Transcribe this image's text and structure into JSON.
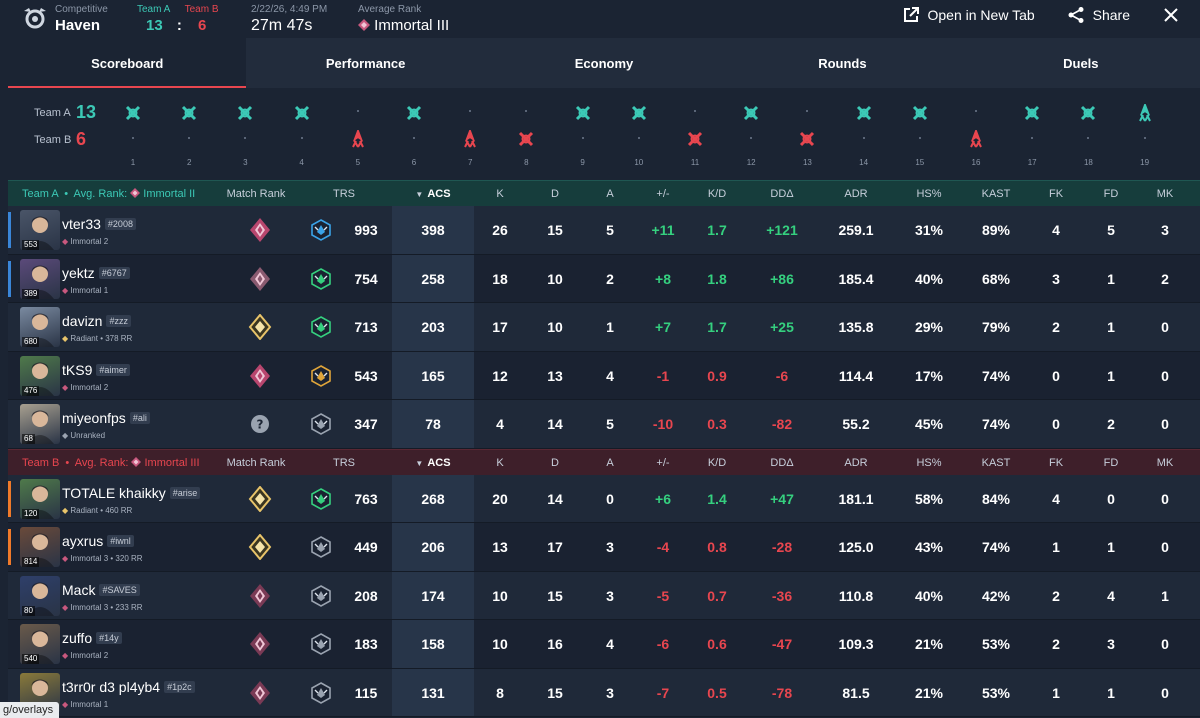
{
  "header": {
    "mode": "Competitive",
    "map": "Haven",
    "team_a_label": "Team A",
    "team_b_label": "Team B",
    "team_a_score": "13",
    "team_b_score": "6",
    "score_sep": ":",
    "date": "2/22/26, 4:49 PM",
    "duration": "27m 47s",
    "avg_rank_label": "Average Rank",
    "avg_rank": "Immortal III",
    "open_new_tab": "Open in New Tab",
    "share": "Share"
  },
  "tabs": [
    "Scoreboard",
    "Performance",
    "Economy",
    "Rounds",
    "Duels"
  ],
  "timeline": {
    "team_a_label": "Team A",
    "team_b_label": "Team B",
    "team_a_score": "13",
    "team_b_score": "6",
    "rounds": [
      {
        "n": "1",
        "w": "A",
        "kind": "elim"
      },
      {
        "n": "2",
        "w": "A",
        "kind": "elim"
      },
      {
        "n": "3",
        "w": "A",
        "kind": "elim"
      },
      {
        "n": "4",
        "w": "A",
        "kind": "elim"
      },
      {
        "n": "5",
        "w": "B",
        "kind": "spike"
      },
      {
        "n": "6",
        "w": "A",
        "kind": "elim"
      },
      {
        "n": "7",
        "w": "B",
        "kind": "spike"
      },
      {
        "n": "8",
        "w": "B",
        "kind": "elim"
      },
      {
        "n": "9",
        "w": "A",
        "kind": "elim"
      },
      {
        "n": "10",
        "w": "A",
        "kind": "elim"
      },
      {
        "n": "11",
        "w": "B",
        "kind": "elim"
      },
      {
        "n": "12",
        "w": "A",
        "kind": "elim"
      },
      {
        "n": "13",
        "w": "B",
        "kind": "elim"
      },
      {
        "n": "14",
        "w": "A",
        "kind": "elim"
      },
      {
        "n": "15",
        "w": "A",
        "kind": "elim"
      },
      {
        "n": "16",
        "w": "B",
        "kind": "spike"
      },
      {
        "n": "17",
        "w": "A",
        "kind": "elim"
      },
      {
        "n": "18",
        "w": "A",
        "kind": "elim"
      },
      {
        "n": "19",
        "w": "A",
        "kind": "spike"
      }
    ]
  },
  "columns": {
    "match_rank": "Match Rank",
    "trs": "TRS",
    "acs": "ACS",
    "k": "K",
    "d": "D",
    "a": "A",
    "pm": "+/-",
    "kd": "K/D",
    "dd": "DDΔ",
    "adr": "ADR",
    "hs": "HS%",
    "kast": "KAST",
    "fk": "FK",
    "fd": "FD",
    "mk": "MK",
    "sort_arrow": "▼"
  },
  "team_a": {
    "name": "Team A",
    "avg_label": "Avg. Rank:",
    "avg_rank": "Immortal II",
    "players": [
      {
        "name": "vter33",
        "tag": "#2008",
        "rank": "Immortal 2",
        "rr": "553",
        "match_rank": "immortal",
        "trs_tier": "blue",
        "trs": "993",
        "acs": "398",
        "k": "26",
        "d": "15",
        "a": "5",
        "pm": "+11",
        "kd": "1.7",
        "dd": "+121",
        "adr": "259.1",
        "hs": "31%",
        "kast": "89%",
        "fk": "4",
        "fd": "5",
        "mk": "3",
        "side": "#3a86d8",
        "av": "#4a5568"
      },
      {
        "name": "yektz",
        "tag": "#6767",
        "rank": "Immortal 1",
        "rr": "389",
        "match_rank": "immortal-grey",
        "trs_tier": "green",
        "trs": "754",
        "acs": "258",
        "k": "18",
        "d": "10",
        "a": "2",
        "pm": "+8",
        "kd": "1.8",
        "dd": "+86",
        "adr": "185.4",
        "hs": "40%",
        "kast": "68%",
        "fk": "3",
        "fd": "1",
        "mk": "2",
        "side": "#3a86d8",
        "av": "#5b4a7a"
      },
      {
        "name": "davizn",
        "tag": "#zzz",
        "rank": "Radiant • 378 RR",
        "rr": "680",
        "match_rank": "radiant",
        "trs_tier": "green",
        "trs": "713",
        "acs": "203",
        "k": "17",
        "d": "10",
        "a": "1",
        "pm": "+7",
        "kd": "1.7",
        "dd": "+25",
        "adr": "135.8",
        "hs": "29%",
        "kast": "79%",
        "fk": "2",
        "fd": "1",
        "mk": "0",
        "side": "",
        "av": "#7a8aa0"
      },
      {
        "name": "tKS9",
        "tag": "#aimer",
        "rank": "Immortal 2",
        "rr": "476",
        "match_rank": "immortal",
        "trs_tier": "gold",
        "trs": "543",
        "acs": "165",
        "k": "12",
        "d": "13",
        "a": "4",
        "pm": "-1",
        "kd": "0.9",
        "dd": "-6",
        "adr": "114.4",
        "hs": "17%",
        "kast": "74%",
        "fk": "0",
        "fd": "1",
        "mk": "0",
        "side": "",
        "av": "#4f7a4a"
      },
      {
        "name": "miyeonfps",
        "tag": "#ali",
        "rank": "Unranked",
        "rr": "68",
        "match_rank": "unranked",
        "trs_tier": "grey",
        "trs": "347",
        "acs": "78",
        "k": "4",
        "d": "14",
        "a": "5",
        "pm": "-10",
        "kd": "0.3",
        "dd": "-82",
        "adr": "55.2",
        "hs": "45%",
        "kast": "74%",
        "fk": "0",
        "fd": "2",
        "mk": "0",
        "side": "",
        "av": "#a8a090"
      }
    ]
  },
  "team_b": {
    "name": "Team B",
    "avg_label": "Avg. Rank:",
    "avg_rank": "Immortal III",
    "players": [
      {
        "name": "TOTALE khaikky",
        "tag": "#arise",
        "rank": "Radiant • 460 RR",
        "rr": "120",
        "match_rank": "radiant",
        "trs_tier": "green",
        "trs": "763",
        "acs": "268",
        "k": "20",
        "d": "14",
        "a": "0",
        "pm": "+6",
        "kd": "1.4",
        "dd": "+47",
        "adr": "181.1",
        "hs": "58%",
        "kast": "84%",
        "fk": "4",
        "fd": "0",
        "mk": "0",
        "side": "#f07a2a",
        "av": "#4f7a4a"
      },
      {
        "name": "ayxrus",
        "tag": "#iwnl",
        "rank": "Immortal 3 • 320 RR",
        "rr": "814",
        "match_rank": "radiant",
        "trs_tier": "grey",
        "trs": "449",
        "acs": "206",
        "k": "13",
        "d": "17",
        "a": "3",
        "pm": "-4",
        "kd": "0.8",
        "dd": "-28",
        "adr": "125.0",
        "hs": "43%",
        "kast": "74%",
        "fk": "1",
        "fd": "1",
        "mk": "0",
        "side": "#f07a2a",
        "av": "#6a4a3a"
      },
      {
        "name": "Mack",
        "tag": "#SAVES",
        "rank": "Immortal 3 • 233 RR",
        "rr": "80",
        "match_rank": "immortal-dark",
        "trs_tier": "grey",
        "trs": "208",
        "acs": "174",
        "k": "10",
        "d": "15",
        "a": "3",
        "pm": "-5",
        "kd": "0.7",
        "dd": "-36",
        "adr": "110.8",
        "hs": "40%",
        "kast": "42%",
        "fk": "2",
        "fd": "4",
        "mk": "1",
        "side": "",
        "av": "#2e3f6a"
      },
      {
        "name": "zuffo",
        "tag": "#14y",
        "rank": "Immortal 2",
        "rr": "540",
        "match_rank": "immortal-dark",
        "trs_tier": "grey",
        "trs": "183",
        "acs": "158",
        "k": "10",
        "d": "16",
        "a": "4",
        "pm": "-6",
        "kd": "0.6",
        "dd": "-47",
        "adr": "109.3",
        "hs": "21%",
        "kast": "53%",
        "fk": "2",
        "fd": "3",
        "mk": "0",
        "side": "",
        "av": "#6a5a4a"
      },
      {
        "name": "t3rr0r d3 pl4yb4",
        "tag": "#1p2c",
        "rank": "Immortal 1",
        "rr": "",
        "match_rank": "immortal-dark",
        "trs_tier": "grey",
        "trs": "115",
        "acs": "131",
        "k": "8",
        "d": "15",
        "a": "3",
        "pm": "-7",
        "kd": "0.5",
        "dd": "-78",
        "adr": "81.5",
        "hs": "21%",
        "kast": "53%",
        "fk": "1",
        "fd": "1",
        "mk": "0",
        "side": "",
        "av": "#8a7a3a"
      }
    ]
  },
  "status_url": "g/overlays",
  "colors": {
    "team_a": "#3cc9b6",
    "team_b": "#e8464f",
    "positive": "#35d07f",
    "negative": "#e8464f",
    "immortal": "#c8587e",
    "radiant": "#e8c46a"
  }
}
